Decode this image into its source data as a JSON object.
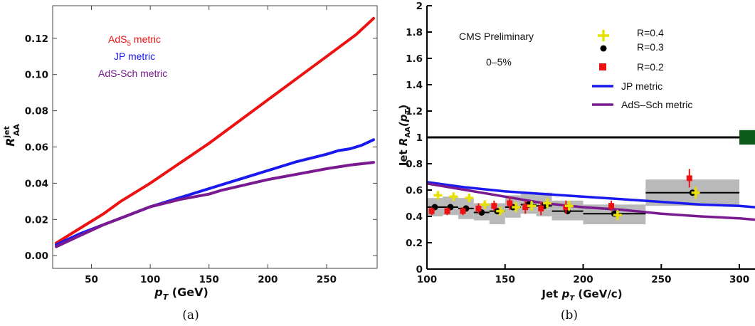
{
  "chart_data": [
    {
      "type": "line",
      "caption": "(a)",
      "xlabel": "p",
      "xlabel_sub": "T",
      "xlabel_unit": " (GeV)",
      "ylabel": "R",
      "ylabel_sup": "jet",
      "ylabel_sub": "AA",
      "xlim": [
        17,
        293
      ],
      "ylim": [
        -0.007,
        0.138
      ],
      "xticks": [
        50,
        100,
        150,
        200,
        250
      ],
      "yticks": [
        0.0,
        0.02,
        0.04,
        0.06,
        0.08,
        0.1,
        0.12
      ],
      "ytick_labels": [
        "0.00",
        "0.02",
        "0.04",
        "0.06",
        "0.08",
        "0.10",
        "0.12"
      ],
      "legend_placement": "top-left",
      "series": [
        {
          "name": "AdS",
          "name_sub": "5",
          "name_tail": " metric",
          "color": "#ee1111",
          "x": [
            20,
            40,
            60,
            75,
            100,
            125,
            150,
            175,
            200,
            225,
            250,
            275,
            290
          ],
          "y": [
            0.007,
            0.015,
            0.023,
            0.03,
            0.04,
            0.051,
            0.062,
            0.074,
            0.086,
            0.098,
            0.11,
            0.122,
            0.131
          ]
        },
        {
          "name": "JP metric",
          "color": "#1a1af0",
          "x": [
            20,
            40,
            60,
            80,
            100,
            125,
            150,
            175,
            200,
            225,
            250,
            260,
            270,
            280,
            290
          ],
          "y": [
            0.006,
            0.012,
            0.017,
            0.022,
            0.027,
            0.032,
            0.037,
            0.042,
            0.047,
            0.052,
            0.056,
            0.058,
            0.059,
            0.061,
            0.064
          ]
        },
        {
          "name": "AdS-Sch metric",
          "color": "#7a1a90",
          "x": [
            20,
            40,
            60,
            80,
            100,
            125,
            150,
            160,
            180,
            200,
            225,
            250,
            270,
            290
          ],
          "y": [
            0.005,
            0.011,
            0.017,
            0.022,
            0.027,
            0.031,
            0.034,
            0.036,
            0.039,
            0.042,
            0.045,
            0.048,
            0.05,
            0.0515
          ]
        }
      ]
    },
    {
      "type": "line",
      "caption": "(b)",
      "xlabel": "Jet ",
      "xlabel_p": "p",
      "xlabel_sub": "T",
      "xlabel_unit": " (GeV/c)",
      "ylabel": "Jet ",
      "ylabel_r": "R",
      "ylabel_sub": "AA",
      "ylabel_arg": "(p",
      "ylabel_arg_sub": "T",
      "ylabel_close": ")",
      "xlim": [
        100,
        310
      ],
      "ylim": [
        0,
        2
      ],
      "xticks": [
        100,
        150,
        200,
        250,
        300
      ],
      "yticks": [
        0,
        0.2,
        0.4,
        0.6,
        0.8,
        1,
        1.2,
        1.4,
        1.6,
        1.8,
        2
      ],
      "ytick_labels": [
        "0",
        "0.2",
        "0.4",
        "0.6",
        "0.8",
        "1",
        "1.2",
        "1.4",
        "1.6",
        "1.8",
        "2"
      ],
      "annotations": [
        "CMS Preliminary",
        "0–5%"
      ],
      "reference_line": {
        "y": 1,
        "color": "#000000"
      },
      "normalization_box": {
        "y": 1.0,
        "half_height": 0.055,
        "color": "#0d5a1a"
      },
      "legend": [
        {
          "label": "R=0.4",
          "marker": "plus",
          "color": "#e8e000"
        },
        {
          "label": "R=0.3",
          "marker": "circle",
          "color": "#000000"
        },
        {
          "label": "R=0.2",
          "marker": "square",
          "color": "#ee1111"
        },
        {
          "label": "JP metric",
          "marker": "line",
          "color": "#1a1af0"
        },
        {
          "label": "AdS–Sch metric",
          "marker": "line",
          "color": "#7a1a90"
        }
      ],
      "series": [
        {
          "name": "JP metric",
          "color": "#1a1af0",
          "x": [
            100,
            125,
            150,
            175,
            200,
            225,
            250,
            275,
            300,
            310
          ],
          "y": [
            0.66,
            0.62,
            0.59,
            0.57,
            0.55,
            0.53,
            0.51,
            0.49,
            0.48,
            0.47
          ]
        },
        {
          "name": "AdS–Sch metric",
          "color": "#7a1a90",
          "x": [
            100,
            125,
            150,
            175,
            200,
            225,
            250,
            275,
            300,
            310
          ],
          "y": [
            0.65,
            0.6,
            0.55,
            0.5,
            0.47,
            0.45,
            0.42,
            0.4,
            0.385,
            0.375
          ]
        }
      ],
      "syst_boxes": [
        {
          "x0": 100,
          "x1": 110,
          "y0": 0.4,
          "y1": 0.54
        },
        {
          "x0": 110,
          "x1": 120,
          "y0": 0.41,
          "y1": 0.55
        },
        {
          "x0": 120,
          "x1": 130,
          "y0": 0.38,
          "y1": 0.54
        },
        {
          "x0": 130,
          "x1": 140,
          "y0": 0.37,
          "y1": 0.5
        },
        {
          "x0": 140,
          "x1": 150,
          "y0": 0.34,
          "y1": 0.5
        },
        {
          "x0": 150,
          "x1": 160,
          "y0": 0.39,
          "y1": 0.56
        },
        {
          "x0": 160,
          "x1": 170,
          "y0": 0.42,
          "y1": 0.58
        },
        {
          "x0": 170,
          "x1": 180,
          "y0": 0.4,
          "y1": 0.58
        },
        {
          "x0": 180,
          "x1": 200,
          "y0": 0.37,
          "y1": 0.52
        },
        {
          "x0": 200,
          "x1": 240,
          "y0": 0.34,
          "y1": 0.49
        },
        {
          "x0": 240,
          "x1": 300,
          "y0": 0.48,
          "y1": 0.68
        }
      ],
      "points_r03": [
        {
          "x": 105,
          "y": 0.47,
          "xerr": 5
        },
        {
          "x": 115,
          "y": 0.47,
          "xerr": 5
        },
        {
          "x": 125,
          "y": 0.46,
          "xerr": 5
        },
        {
          "x": 135,
          "y": 0.43,
          "xerr": 5
        },
        {
          "x": 145,
          "y": 0.44,
          "xerr": 5
        },
        {
          "x": 155,
          "y": 0.47,
          "xerr": 5
        },
        {
          "x": 165,
          "y": 0.49,
          "xerr": 5
        },
        {
          "x": 175,
          "y": 0.48,
          "xerr": 5
        },
        {
          "x": 190,
          "y": 0.44,
          "xerr": 10
        },
        {
          "x": 220,
          "y": 0.42,
          "xerr": 20
        },
        {
          "x": 270,
          "y": 0.58,
          "xerr": 30
        }
      ],
      "points_r02": [
        {
          "x": 103,
          "y": 0.44,
          "yerr": 0.03
        },
        {
          "x": 113,
          "y": 0.44,
          "yerr": 0.03
        },
        {
          "x": 123,
          "y": 0.44,
          "yerr": 0.03
        },
        {
          "x": 133,
          "y": 0.46,
          "yerr": 0.04
        },
        {
          "x": 143,
          "y": 0.48,
          "yerr": 0.04
        },
        {
          "x": 153,
          "y": 0.5,
          "yerr": 0.05
        },
        {
          "x": 163,
          "y": 0.47,
          "yerr": 0.05
        },
        {
          "x": 173,
          "y": 0.46,
          "yerr": 0.05
        },
        {
          "x": 189,
          "y": 0.47,
          "yerr": 0.05
        },
        {
          "x": 218,
          "y": 0.48,
          "yerr": 0.04
        },
        {
          "x": 268,
          "y": 0.69,
          "yerr": 0.07
        }
      ],
      "points_r04": [
        {
          "x": 107,
          "y": 0.56,
          "yerr": 0.03
        },
        {
          "x": 117,
          "y": 0.55,
          "yerr": 0.03
        },
        {
          "x": 127,
          "y": 0.54,
          "yerr": 0.03
        },
        {
          "x": 137,
          "y": 0.49,
          "yerr": 0.03
        },
        {
          "x": 147,
          "y": 0.44,
          "yerr": 0.03
        },
        {
          "x": 157,
          "y": 0.47,
          "yerr": 0.04
        },
        {
          "x": 167,
          "y": 0.48,
          "yerr": 0.04
        },
        {
          "x": 177,
          "y": 0.5,
          "yerr": 0.04
        },
        {
          "x": 191,
          "y": 0.48,
          "yerr": 0.04
        },
        {
          "x": 222,
          "y": 0.41,
          "yerr": 0.04
        },
        {
          "x": 272,
          "y": 0.58,
          "yerr": 0.05
        }
      ]
    }
  ]
}
